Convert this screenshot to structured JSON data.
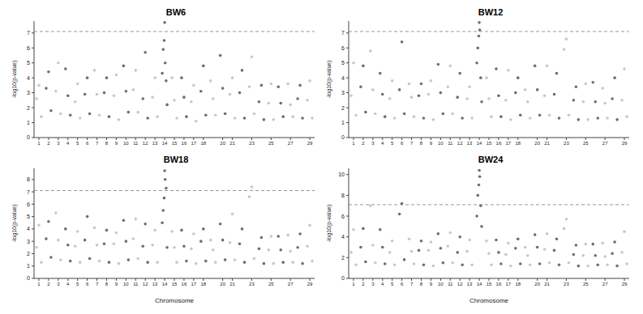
{
  "chart_data": [
    {
      "type": "scatter",
      "title": "BW6",
      "y_label": "-log10(p-value)",
      "xlim": [
        0.5,
        29.5
      ],
      "xticks": [
        1,
        2,
        3,
        4,
        5,
        6,
        7,
        8,
        9,
        10,
        11,
        12,
        13,
        14,
        15,
        16,
        17,
        18,
        20,
        21,
        23,
        25,
        27,
        29
      ],
      "ylim": [
        0,
        7.8
      ],
      "yticks": [
        0,
        1,
        2,
        3,
        4,
        5,
        6,
        7
      ],
      "threshold": 7.1,
      "line_style": "dashed",
      "series": [
        {
          "color": "#c8c8c8",
          "x": [
            0.75,
            1,
            1.25,
            2.75,
            3,
            3.25,
            4.75,
            5,
            5.25,
            6.75,
            7,
            7.25,
            8.75,
            9,
            9.25,
            10.75,
            11,
            11.25,
            12.75,
            13,
            13.25,
            14.75,
            15,
            15.25,
            16.75,
            17,
            17.25,
            18.75,
            19,
            19.25,
            20.75,
            21,
            21.25,
            22.75,
            23,
            23.25,
            24.75,
            25,
            25.25,
            26.75,
            27,
            27.25,
            28.75,
            29,
            29.25
          ],
          "values": [
            2.6,
            3.5,
            1.4,
            3.1,
            5.0,
            1.6,
            2.4,
            3.6,
            1.3,
            4.5,
            2.9,
            1.5,
            2.8,
            4.2,
            1.2,
            3.2,
            4.5,
            1.7,
            2.7,
            4.0,
            1.4,
            4.0,
            2.5,
            1.3,
            2.4,
            3.5,
            1.1,
            3.8,
            2.6,
            1.5,
            2.9,
            4.0,
            1.3,
            3.4,
            5.4,
            1.6,
            2.3,
            3.6,
            1.2,
            3.6,
            2.2,
            1.4,
            2.5,
            3.8,
            1.3
          ]
        },
        {
          "color": "#6e6e6e",
          "x": [
            1.75,
            2,
            2.25,
            3.75,
            4,
            4.25,
            5.75,
            6,
            6.25,
            7.75,
            8,
            8.25,
            9.75,
            10,
            10.25,
            11.75,
            12,
            12.25,
            13.75,
            13.85,
            13.95,
            14,
            14.05,
            14.15,
            14.25,
            15.75,
            16,
            16.25,
            17.75,
            18,
            18.25,
            19.75,
            20,
            20.25,
            21.75,
            22,
            22.25,
            23.75,
            24,
            24.25,
            25.75,
            26,
            26.25,
            27.75,
            28,
            28.25
          ],
          "values": [
            3.3,
            4.4,
            1.8,
            4.6,
            2.8,
            1.5,
            2.9,
            4.0,
            1.6,
            3.0,
            4.0,
            1.4,
            4.8,
            3.1,
            1.7,
            2.6,
            5.7,
            1.3,
            4.3,
            5.9,
            6.5,
            7.7,
            5.0,
            3.8,
            2.2,
            4.0,
            2.7,
            1.4,
            3.1,
            4.8,
            1.5,
            5.5,
            3.3,
            1.6,
            3.0,
            4.5,
            1.3,
            2.4,
            3.5,
            1.2,
            3.4,
            2.3,
            1.4,
            2.6,
            3.5,
            1.3
          ]
        }
      ]
    },
    {
      "type": "scatter",
      "title": "BW12",
      "y_label": "-log10(p-value)",
      "xlim": [
        0.5,
        29.5
      ],
      "xticks": [
        1,
        2,
        3,
        4,
        5,
        6,
        7,
        8,
        9,
        10,
        11,
        12,
        13,
        14,
        15,
        16,
        17,
        18,
        20,
        21,
        23,
        25,
        27,
        29
      ],
      "ylim": [
        0,
        7.8
      ],
      "yticks": [
        0,
        1,
        2,
        3,
        4,
        5,
        6,
        7
      ],
      "threshold": 7.1,
      "line_style": "dashed",
      "series": [
        {
          "color": "#c8c8c8",
          "x": [
            0.75,
            1,
            1.25,
            2.75,
            3,
            3.25,
            4.75,
            5,
            5.25,
            6.75,
            7,
            7.25,
            8.75,
            9,
            9.25,
            10.75,
            11,
            11.25,
            12.75,
            13,
            13.25,
            14.75,
            15,
            15.25,
            16.75,
            17,
            17.25,
            18.75,
            19,
            19.25,
            20.75,
            21,
            21.25,
            22.75,
            23,
            23.25,
            24.75,
            25,
            25.25,
            26.75,
            27,
            27.25,
            28.75,
            29,
            29.25
          ],
          "values": [
            2.8,
            5.0,
            1.5,
            5.8,
            3.2,
            1.6,
            2.6,
            3.8,
            1.3,
            3.6,
            2.7,
            1.4,
            2.9,
            3.8,
            1.2,
            3.4,
            4.8,
            1.6,
            2.6,
            3.4,
            1.3,
            4.0,
            2.6,
            1.4,
            2.5,
            4.5,
            1.2,
            3.2,
            2.4,
            1.3,
            2.8,
            4.8,
            1.5,
            5.9,
            6.6,
            1.5,
            2.4,
            3.6,
            1.2,
            3.3,
            2.3,
            1.3,
            2.5,
            4.6,
            1.4
          ]
        },
        {
          "color": "#6e6e6e",
          "x": [
            1.75,
            2,
            2.25,
            3.75,
            4,
            4.25,
            5.75,
            6,
            6.25,
            7.75,
            8,
            8.25,
            9.75,
            10,
            10.25,
            11.75,
            12,
            12.25,
            13.75,
            13.85,
            13.95,
            14,
            14.05,
            14.15,
            14.25,
            15.75,
            16,
            16.25,
            17.75,
            18,
            18.25,
            19.75,
            20,
            20.25,
            21.75,
            22,
            22.25,
            23.75,
            24,
            24.25,
            25.75,
            26,
            26.25,
            27.75,
            28,
            28.25
          ],
          "values": [
            3.4,
            4.8,
            1.7,
            4.3,
            2.9,
            1.4,
            3.2,
            6.4,
            1.6,
            2.8,
            3.6,
            1.3,
            4.9,
            3.0,
            1.6,
            2.7,
            4.3,
            1.3,
            5.0,
            6.0,
            6.8,
            7.7,
            7.2,
            4.0,
            2.4,
            4.6,
            2.8,
            1.4,
            3.0,
            4.0,
            1.5,
            4.8,
            3.2,
            1.5,
            2.9,
            4.3,
            1.3,
            2.5,
            3.4,
            1.2,
            3.7,
            2.4,
            1.3,
            2.6,
            4.0,
            1.2
          ]
        }
      ]
    },
    {
      "type": "scatter",
      "title": "BW18",
      "x_label": "Chromosome",
      "y_label": "-log10(p-value)",
      "xlim": [
        0.5,
        29.5
      ],
      "xticks": [
        1,
        2,
        3,
        4,
        5,
        6,
        7,
        8,
        9,
        10,
        11,
        12,
        13,
        14,
        15,
        16,
        17,
        18,
        20,
        21,
        23,
        25,
        27,
        29
      ],
      "ylim": [
        0,
        8.9
      ],
      "yticks": [
        0,
        1,
        2,
        3,
        4,
        5,
        6,
        7,
        8
      ],
      "threshold": 7.1,
      "line_style": "dashed",
      "series": [
        {
          "color": "#c8c8c8",
          "x": [
            0.75,
            1,
            1.25,
            2.75,
            3,
            3.25,
            4.75,
            5,
            5.25,
            6.75,
            7,
            7.25,
            8.75,
            9,
            9.25,
            10.75,
            11,
            11.25,
            12.75,
            13,
            13.25,
            14.75,
            15,
            15.25,
            16.75,
            17,
            17.25,
            18.75,
            19,
            19.25,
            20.75,
            21,
            21.25,
            22.75,
            23,
            23.25,
            24.75,
            25,
            25.25,
            26.75,
            27,
            27.25,
            28.75,
            29,
            29.25
          ],
          "values": [
            2.5,
            4.3,
            1.3,
            5.3,
            3.1,
            1.5,
            2.6,
            3.8,
            1.3,
            4.1,
            2.7,
            1.4,
            2.8,
            3.7,
            1.2,
            3.2,
            4.8,
            1.6,
            2.7,
            3.9,
            1.3,
            3.8,
            2.5,
            1.3,
            2.4,
            3.6,
            1.2,
            3.1,
            2.3,
            1.3,
            2.9,
            5.2,
            1.5,
            6.6,
            7.4,
            1.6,
            2.3,
            3.4,
            1.2,
            3.5,
            2.2,
            1.3,
            2.6,
            4.3,
            1.4
          ]
        },
        {
          "color": "#6e6e6e",
          "x": [
            1.75,
            2,
            2.25,
            3.75,
            4,
            4.25,
            5.75,
            6,
            6.25,
            7.75,
            8,
            8.25,
            9.75,
            10,
            10.25,
            11.75,
            12,
            12.25,
            13.75,
            13.85,
            13.95,
            14,
            14.05,
            14.15,
            14.25,
            15.75,
            16,
            16.25,
            17.75,
            18,
            18.25,
            19.75,
            20,
            20.25,
            21.75,
            22,
            22.25,
            23.75,
            24,
            24.25,
            25.75,
            26,
            26.25,
            27.75,
            28,
            28.25
          ],
          "values": [
            3.2,
            4.6,
            1.7,
            4.0,
            2.7,
            1.4,
            3.1,
            5.0,
            1.6,
            2.8,
            3.9,
            1.3,
            4.7,
            3.0,
            1.5,
            2.6,
            4.4,
            1.3,
            4.5,
            5.5,
            6.5,
            8.7,
            8.0,
            7.3,
            2.5,
            3.9,
            2.6,
            1.4,
            3.0,
            4.0,
            1.4,
            4.4,
            3.1,
            1.5,
            2.8,
            4.0,
            1.3,
            2.4,
            3.3,
            1.2,
            3.4,
            2.3,
            1.3,
            2.5,
            3.6,
            1.2
          ]
        }
      ]
    },
    {
      "type": "scatter",
      "title": "BW24",
      "x_label": "Chromosome",
      "y_label": "-log10(p-value)",
      "xlim": [
        0.5,
        29.5
      ],
      "xticks": [
        1,
        2,
        3,
        4,
        5,
        6,
        7,
        8,
        9,
        10,
        11,
        12,
        13,
        14,
        15,
        16,
        17,
        18,
        20,
        21,
        23,
        25,
        27,
        29
      ],
      "ylim": [
        0,
        10.6
      ],
      "yticks": [
        0,
        2,
        4,
        6,
        8,
        10
      ],
      "threshold": 7.1,
      "line_style": "dashed",
      "series": [
        {
          "color": "#c8c8c8",
          "x": [
            0.75,
            1,
            1.25,
            2.75,
            3,
            3.25,
            4.75,
            5,
            5.25,
            6.75,
            7,
            7.25,
            8.75,
            9,
            9.25,
            10.75,
            11,
            11.25,
            12.75,
            13,
            13.25,
            14.75,
            15,
            15.25,
            16.75,
            17,
            17.25,
            18.75,
            19,
            19.25,
            20.75,
            21,
            21.25,
            22.75,
            23,
            23.25,
            24.75,
            25,
            25.25,
            26.75,
            27,
            27.25,
            28.75,
            29,
            29.25
          ],
          "values": [
            2.5,
            4.7,
            1.3,
            7.0,
            3.2,
            1.5,
            2.5,
            3.6,
            1.3,
            3.8,
            2.6,
            1.4,
            2.7,
            3.5,
            1.2,
            3.1,
            4.4,
            1.5,
            2.6,
            3.7,
            1.3,
            3.6,
            2.4,
            1.3,
            2.3,
            3.4,
            1.2,
            3.0,
            2.2,
            1.3,
            2.8,
            4.3,
            1.5,
            4.8,
            5.7,
            1.5,
            2.2,
            3.3,
            1.2,
            3.4,
            2.1,
            1.3,
            2.5,
            4.5,
            1.4
          ]
        },
        {
          "color": "#6e6e6e",
          "x": [
            1.75,
            2,
            2.25,
            3.75,
            4,
            4.25,
            5.75,
            6,
            6.25,
            7.75,
            8,
            8.25,
            9.75,
            10,
            10.25,
            11.75,
            12,
            12.25,
            13.75,
            13.85,
            13.95,
            14,
            14.05,
            14.15,
            14.25,
            15.75,
            16,
            16.25,
            17.75,
            18,
            18.25,
            19.75,
            20,
            20.25,
            21.75,
            22,
            22.25,
            23.75,
            24,
            24.25,
            25.75,
            26,
            26.25,
            27.75,
            28,
            28.25
          ],
          "values": [
            3.0,
            4.8,
            1.6,
            4.7,
            3.0,
            1.4,
            6.2,
            7.2,
            1.8,
            2.7,
            3.6,
            1.3,
            4.3,
            2.9,
            1.5,
            2.5,
            4.0,
            1.3,
            6.0,
            8.0,
            9.0,
            10.4,
            9.8,
            7.0,
            5.0,
            3.7,
            2.5,
            1.4,
            2.9,
            3.8,
            1.4,
            4.2,
            3.0,
            1.4,
            2.7,
            3.8,
            1.3,
            2.3,
            3.2,
            1.2,
            3.3,
            2.2,
            1.3,
            2.4,
            3.5,
            1.2
          ]
        }
      ]
    }
  ]
}
